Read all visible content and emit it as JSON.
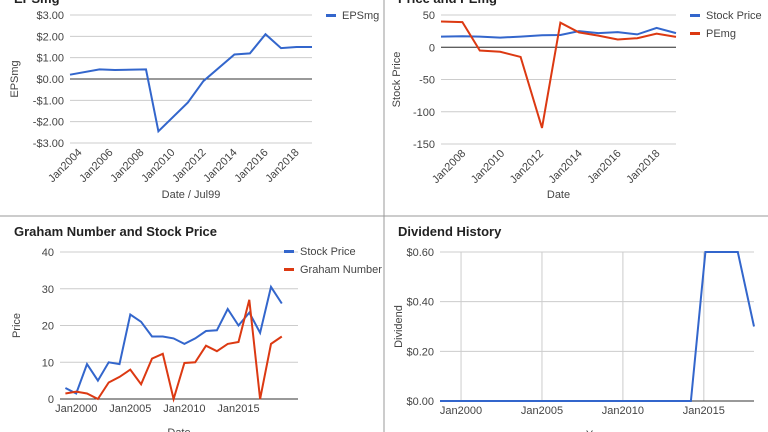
{
  "chart_data": [
    {
      "type": "line",
      "title": "EPSmg",
      "x_label": "Date / Jul99",
      "y_label": "EPSmg",
      "x": [
        2003.2,
        2005.1,
        2006.1,
        2008.1,
        2008.9,
        2010.8,
        2011.8,
        2013.8,
        2014.8,
        2015.8,
        2016.8,
        2017.8,
        2018.8
      ],
      "series": [
        {
          "name": "EPSmg",
          "color": "#3366cc",
          "values": [
            0.2,
            0.45,
            0.42,
            0.45,
            -2.45,
            -1.1,
            -0.1,
            1.15,
            1.2,
            2.1,
            1.45,
            1.5,
            1.5
          ]
        }
      ],
      "xlim": [
        2003.2,
        2018.8
      ],
      "xticks": [
        {
          "value": 2004,
          "label": "Jan2004"
        },
        {
          "value": 2006,
          "label": "Jan2006"
        },
        {
          "value": 2008,
          "label": "Jan2008"
        },
        {
          "value": 2010,
          "label": "Jan2010"
        },
        {
          "value": 2012,
          "label": "Jan2012"
        },
        {
          "value": 2014,
          "label": "Jan2014"
        },
        {
          "value": 2016,
          "label": "Jan2016"
        },
        {
          "value": 2018,
          "label": "Jan2018"
        }
      ],
      "ylim": [
        -3,
        3
      ],
      "yticks": [
        {
          "value": 3,
          "label": "$3.00"
        },
        {
          "value": 2,
          "label": "$2.00"
        },
        {
          "value": 1,
          "label": "$1.00"
        },
        {
          "value": 0,
          "label": "$0.00"
        },
        {
          "value": -1,
          "label": "-$1.00"
        },
        {
          "value": -2,
          "label": "-$2.00"
        },
        {
          "value": -3,
          "label": "-$3.00"
        }
      ],
      "grid": true
    },
    {
      "type": "line",
      "title": "Price and PEmg",
      "x_label": "Date",
      "y_label": "Stock Price",
      "x": [
        2006.7,
        2007.8,
        2008.7,
        2009.75,
        2010.8,
        2011.9,
        2012.85,
        2013.8,
        2014.8,
        2015.8,
        2016.8,
        2017.8,
        2018.8
      ],
      "series": [
        {
          "name": "Stock Price",
          "color": "#3366cc",
          "values": [
            16.5,
            17,
            16.5,
            15,
            16.5,
            18.5,
            19,
            25,
            22,
            23.5,
            20,
            30,
            22
          ]
        },
        {
          "name": "PEmg",
          "color": "#dc3912",
          "values": [
            40,
            39,
            -5,
            -7,
            -15,
            -125,
            38,
            23,
            18,
            12,
            14,
            21,
            16
          ]
        }
      ],
      "xlim": [
        2006.7,
        2018.8
      ],
      "xticks": [
        {
          "value": 2008,
          "label": "Jan2008"
        },
        {
          "value": 2010,
          "label": "Jan2010"
        },
        {
          "value": 2012,
          "label": "Jan2012"
        },
        {
          "value": 2014,
          "label": "Jan2014"
        },
        {
          "value": 2016,
          "label": "Jan2016"
        },
        {
          "value": 2018,
          "label": "Jan2018"
        }
      ],
      "ylim": [
        -150,
        50
      ],
      "yticks": [
        50,
        0,
        -50,
        -100,
        -150
      ],
      "grid": true
    },
    {
      "type": "line",
      "title": "Graham Number and Stock Price",
      "x_label": "Date",
      "y_label": "Price",
      "x": [
        1999,
        2000,
        2001,
        2002,
        2003,
        2004,
        2005,
        2006,
        2007,
        2008,
        2009,
        2010,
        2011,
        2012,
        2013,
        2014,
        2015,
        2016,
        2017,
        2018,
        2019
      ],
      "series": [
        {
          "name": "Stock Price",
          "color": "#3366cc",
          "values": [
            3,
            1.5,
            9.5,
            5,
            10,
            9.5,
            23,
            21,
            17,
            17,
            16.5,
            15,
            16.5,
            18.5,
            18.7,
            24.5,
            20,
            23.5,
            18,
            30.5,
            26
          ]
        },
        {
          "name": "Graham Number",
          "color": "#dc3912",
          "values": [
            1.5,
            2,
            1.5,
            0,
            4.5,
            6,
            8,
            4,
            11,
            12.3,
            0,
            9.8,
            10,
            14.5,
            13,
            15,
            15.5,
            27,
            0,
            15,
            17
          ]
        }
      ],
      "xlim": [
        1998.5,
        2020.5
      ],
      "xticks": [
        {
          "value": 2000,
          "label": "Jan2000"
        },
        {
          "value": 2005,
          "label": "Jan2005"
        },
        {
          "value": 2010,
          "label": "Jan2010"
        },
        {
          "value": 2015,
          "label": "Jan2015"
        }
      ],
      "ylim": [
        0,
        40
      ],
      "yticks": [
        0,
        10,
        20,
        30,
        40
      ],
      "grid": true
    },
    {
      "type": "line",
      "title": "Dividend History",
      "x_label": "Year",
      "y_label": "Dividend",
      "x": [
        1998.7,
        2014.2,
        2015.1,
        2017.1,
        2018.1
      ],
      "series": [
        {
          "color": "#3366cc",
          "values": [
            0,
            0,
            0.6,
            0.6,
            0.3
          ]
        }
      ],
      "xlim": [
        1998.7,
        2018.1
      ],
      "xticks": [
        {
          "value": 2000,
          "label": "Jan2000"
        },
        {
          "value": 2005,
          "label": "Jan2005"
        },
        {
          "value": 2010,
          "label": "Jan2010"
        },
        {
          "value": 2015,
          "label": "Jan2015"
        }
      ],
      "ylim": [
        0,
        0.6
      ],
      "yticks": [
        {
          "value": 0,
          "label": "$0.00"
        },
        {
          "value": 0.2,
          "label": "$0.20"
        },
        {
          "value": 0.4,
          "label": "$0.40"
        },
        {
          "value": 0.6,
          "label": "$0.60"
        }
      ],
      "grid": true,
      "xgrid": true
    }
  ]
}
